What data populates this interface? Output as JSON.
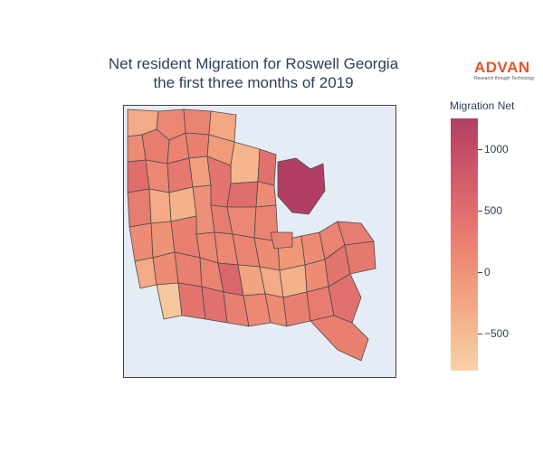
{
  "title": {
    "line1": "Net resident Migration for Roswell Georgia",
    "line2": "the first three months of 2019"
  },
  "logo": {
    "word": "ADVAN",
    "tagline": "Research through Technology",
    "color": "#e0562a"
  },
  "colorbar": {
    "title": "Migration Net",
    "range": [
      -800,
      1250
    ],
    "ticks": [
      {
        "value": 1000,
        "label": "1000"
      },
      {
        "value": 500,
        "label": "500"
      },
      {
        "value": 0,
        "label": "0"
      },
      {
        "value": -500,
        "label": "−500"
      }
    ],
    "colorscale": [
      "#f6d2a9",
      "#f5b78e",
      "#f19c7c",
      "#ea8171",
      "#dd686c",
      "#ca5268",
      "#b13f64"
    ]
  },
  "map": {
    "background": "#e5ecf6",
    "border_color": "#444444",
    "region_values": [
      -300,
      150,
      200,
      -250,
      100,
      300,
      200,
      250,
      -100,
      -450,
      450,
      500,
      150,
      350,
      -150,
      1250,
      400,
      500,
      100,
      300,
      -300,
      -400,
      50,
      300,
      150,
      200,
      100,
      0,
      250,
      150,
      150,
      200,
      100,
      -50,
      100,
      200,
      300,
      200,
      -300,
      100,
      250,
      200,
      600,
      -200,
      -300,
      -400,
      100,
      400,
      350,
      -650,
      400,
      450,
      250,
      150,
      100,
      250,
      300,
      450,
      250
    ]
  }
}
